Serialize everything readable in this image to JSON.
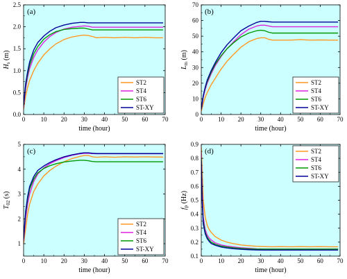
{
  "figure": {
    "plot_background": "#ccffff"
  },
  "chart_data": [
    {
      "type": "line",
      "panel_label": "(a)",
      "xlabel": "time (hour)",
      "ylabel": "H",
      "ylabel_sub": "s",
      "ylabel_unit": " (m)",
      "xlim": [
        0,
        70
      ],
      "ylim": [
        0,
        2.5
      ],
      "xticks": [
        0,
        10,
        20,
        30,
        40,
        50,
        60,
        70
      ],
      "yticks": [
        0.0,
        0.5,
        1.0,
        1.5,
        2.0,
        2.5
      ],
      "ytick_labels": [
        "0.0",
        "0.5",
        "1.0",
        "1.5",
        "2.0",
        "2.5"
      ],
      "legend": "bottom-right",
      "x": [
        0,
        1,
        2,
        3,
        5,
        7,
        10,
        13,
        16,
        20,
        24,
        28,
        30,
        32,
        34,
        36,
        40,
        45,
        50,
        55,
        60,
        65,
        69
      ],
      "series": [
        {
          "name": "ST2",
          "color": "#ff9922",
          "values": [
            0.12,
            0.42,
            0.62,
            0.78,
            1.0,
            1.17,
            1.36,
            1.5,
            1.61,
            1.71,
            1.77,
            1.8,
            1.81,
            1.8,
            1.78,
            1.75,
            1.76,
            1.75,
            1.76,
            1.75,
            1.76,
            1.75,
            1.75
          ]
        },
        {
          "name": "ST4",
          "color": "#dd22dd",
          "values": [
            0.15,
            0.58,
            0.85,
            1.05,
            1.3,
            1.47,
            1.65,
            1.78,
            1.87,
            1.95,
            1.99,
            2.01,
            2.02,
            2.01,
            1.99,
            1.99,
            1.99,
            1.99,
            1.99,
            1.99,
            1.99,
            1.99,
            1.99
          ]
        },
        {
          "name": "ST6",
          "color": "#009900",
          "values": [
            0.2,
            0.65,
            0.92,
            1.13,
            1.38,
            1.55,
            1.72,
            1.82,
            1.89,
            1.94,
            1.96,
            1.97,
            1.97,
            1.95,
            1.93,
            1.93,
            1.93,
            1.93,
            1.93,
            1.93,
            1.93,
            1.93,
            1.93
          ]
        },
        {
          "name": "ST-XY",
          "color": "#000099",
          "values": [
            0.22,
            0.7,
            0.98,
            1.2,
            1.47,
            1.64,
            1.79,
            1.9,
            1.98,
            2.04,
            2.08,
            2.1,
            2.1,
            2.09,
            2.09,
            2.09,
            2.09,
            2.09,
            2.09,
            2.09,
            2.09,
            2.09,
            2.09
          ]
        }
      ]
    },
    {
      "type": "line",
      "panel_label": "(b)",
      "xlabel": "time (hour)",
      "ylabel": "L",
      "ylabel_sub": "m",
      "ylabel_unit": " (m)",
      "xlim": [
        0,
        70
      ],
      "ylim": [
        0,
        70
      ],
      "xticks": [
        0,
        10,
        20,
        30,
        40,
        50,
        60,
        70
      ],
      "yticks": [
        0,
        10,
        20,
        30,
        40,
        50,
        60,
        70
      ],
      "ytick_labels": [
        "0",
        "10",
        "20",
        "30",
        "40",
        "50",
        "60",
        "70"
      ],
      "legend": "bottom-right",
      "x": [
        0,
        1,
        2,
        3,
        5,
        7,
        10,
        13,
        16,
        20,
        24,
        28,
        30,
        32,
        34,
        36,
        40,
        45,
        50,
        55,
        60,
        65,
        69
      ],
      "series": [
        {
          "name": "ST2",
          "color": "#ff9922",
          "values": [
            2,
            7,
            11,
            14,
            19,
            23,
            29,
            34,
            38,
            43,
            46.5,
            48.5,
            49,
            49,
            48,
            47.5,
            47.5,
            47.5,
            47.8,
            47.5,
            47.6,
            47.5,
            47.5
          ]
        },
        {
          "name": "ST4",
          "color": "#dd22dd",
          "values": [
            3,
            11,
            16,
            20,
            26,
            31,
            37,
            42,
            46,
            51,
            54.5,
            56.5,
            57,
            57,
            56.5,
            56,
            56,
            56,
            56,
            56,
            56,
            56,
            56
          ]
        },
        {
          "name": "ST6",
          "color": "#009900",
          "values": [
            3.5,
            12,
            17,
            21,
            27,
            32,
            37.5,
            42,
            45.5,
            49.5,
            52,
            53.5,
            53.8,
            53.5,
            52.5,
            52,
            52,
            52,
            52,
            52,
            52,
            52,
            52
          ]
        },
        {
          "name": "ST-XY",
          "color": "#000099",
          "values": [
            3.5,
            12,
            17.5,
            22,
            28,
            33,
            39.5,
            44.5,
            48.5,
            53.5,
            56.5,
            58.8,
            59.5,
            59.5,
            59.2,
            59,
            59,
            59,
            59,
            59,
            59,
            59,
            59
          ]
        }
      ]
    },
    {
      "type": "line",
      "panel_label": "(c)",
      "xlabel": "time (hour)",
      "ylabel": "T",
      "ylabel_sub": "02",
      "ylabel_unit": " (s)",
      "xlim": [
        0,
        70
      ],
      "ylim": [
        0.5,
        5
      ],
      "xticks": [
        0,
        10,
        20,
        30,
        40,
        50,
        60,
        70
      ],
      "yticks": [
        1,
        2,
        3,
        4,
        5
      ],
      "ytick_labels": [
        "1",
        "2",
        "3",
        "4",
        "5"
      ],
      "legend": "bottom-right",
      "x": [
        0,
        1,
        2,
        3,
        5,
        7,
        10,
        13,
        16,
        20,
        24,
        28,
        30,
        32,
        34,
        36,
        40,
        45,
        50,
        55,
        60,
        65,
        69
      ],
      "series": [
        {
          "name": "ST2",
          "color": "#ff9922",
          "values": [
            1.0,
            1.6,
            2.2,
            2.6,
            3.1,
            3.4,
            3.73,
            3.95,
            4.12,
            4.3,
            4.43,
            4.52,
            4.55,
            4.55,
            4.5,
            4.48,
            4.5,
            4.48,
            4.5,
            4.49,
            4.5,
            4.49,
            4.49
          ]
        },
        {
          "name": "ST4",
          "color": "#dd22dd",
          "values": [
            1.1,
            2.0,
            2.6,
            3.0,
            3.5,
            3.8,
            4.05,
            4.22,
            4.34,
            4.47,
            4.56,
            4.62,
            4.64,
            4.64,
            4.63,
            4.62,
            4.62,
            4.62,
            4.62,
            4.62,
            4.62,
            4.62,
            4.62
          ]
        },
        {
          "name": "ST6",
          "color": "#009900",
          "values": [
            1.2,
            2.2,
            2.8,
            3.2,
            3.6,
            3.85,
            4.03,
            4.14,
            4.22,
            4.29,
            4.33,
            4.36,
            4.36,
            4.34,
            4.31,
            4.3,
            4.3,
            4.3,
            4.3,
            4.3,
            4.3,
            4.3,
            4.3
          ]
        },
        {
          "name": "ST-XY",
          "color": "#000099",
          "values": [
            1.2,
            2.3,
            2.9,
            3.3,
            3.7,
            3.95,
            4.13,
            4.27,
            4.38,
            4.5,
            4.58,
            4.64,
            4.66,
            4.66,
            4.64,
            4.63,
            4.63,
            4.63,
            4.63,
            4.63,
            4.63,
            4.63,
            4.63
          ]
        }
      ]
    },
    {
      "type": "line",
      "panel_label": "(d)",
      "xlabel": "time (hour)",
      "ylabel": "f",
      "ylabel_sub": "p",
      "ylabel_unit": " (Hz)",
      "xlim": [
        0,
        70
      ],
      "ylim": [
        0.1,
        0.9
      ],
      "xticks": [
        0,
        10,
        20,
        30,
        40,
        50,
        60,
        70
      ],
      "yticks": [
        0.1,
        0.2,
        0.3,
        0.4,
        0.5,
        0.6,
        0.7,
        0.8,
        0.9
      ],
      "ytick_labels": [
        "0.1",
        "0.2",
        "0.3",
        "0.4",
        "0.5",
        "0.6",
        "0.7",
        "0.8",
        "0.9"
      ],
      "legend": "top-right",
      "x": [
        0,
        0.5,
        1,
        2,
        3,
        4,
        5,
        7,
        10,
        13,
        16,
        20,
        24,
        28,
        32,
        36,
        40,
        45,
        50,
        55,
        60,
        65,
        69
      ],
      "series": [
        {
          "name": "ST2",
          "color": "#ff9922",
          "values": [
            0.88,
            0.7,
            0.5,
            0.38,
            0.32,
            0.29,
            0.27,
            0.24,
            0.215,
            0.2,
            0.19,
            0.18,
            0.175,
            0.17,
            0.168,
            0.167,
            0.168,
            0.167,
            0.168,
            0.167,
            0.168,
            0.167,
            0.167
          ]
        },
        {
          "name": "ST4",
          "color": "#dd22dd",
          "values": [
            0.84,
            0.55,
            0.38,
            0.29,
            0.25,
            0.23,
            0.215,
            0.195,
            0.18,
            0.172,
            0.166,
            0.16,
            0.156,
            0.152,
            0.15,
            0.15,
            0.15,
            0.15,
            0.15,
            0.15,
            0.15,
            0.15,
            0.15
          ]
        },
        {
          "name": "ST6",
          "color": "#009900",
          "values": [
            0.8,
            0.5,
            0.35,
            0.27,
            0.235,
            0.215,
            0.2,
            0.185,
            0.172,
            0.165,
            0.16,
            0.155,
            0.152,
            0.15,
            0.15,
            0.15,
            0.15,
            0.15,
            0.15,
            0.15,
            0.15,
            0.15,
            0.15
          ]
        },
        {
          "name": "ST-XY",
          "color": "#000099",
          "values": [
            0.78,
            0.48,
            0.33,
            0.26,
            0.225,
            0.205,
            0.19,
            0.178,
            0.165,
            0.158,
            0.153,
            0.149,
            0.146,
            0.144,
            0.143,
            0.143,
            0.143,
            0.143,
            0.143,
            0.143,
            0.143,
            0.143,
            0.143
          ]
        }
      ]
    }
  ]
}
